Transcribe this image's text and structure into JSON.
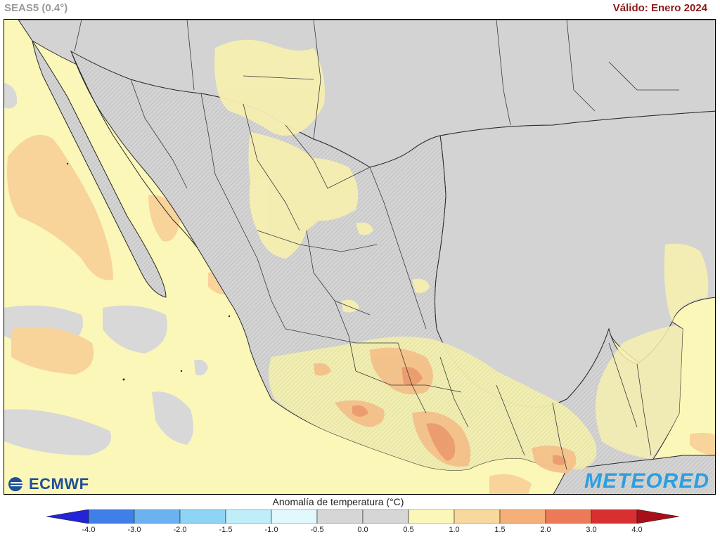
{
  "header": {
    "model": "SEAS5 (0.4°)",
    "valid": "Válido: Enero 2024"
  },
  "map": {
    "region": "Mexico",
    "variable": "temperature anomaly",
    "background_color": "#fbf7b8",
    "land_color": "#d3d3d3"
  },
  "logos": {
    "left": "ECMWF",
    "right": "METEORED"
  },
  "legend": {
    "title": "Anomalía de temperatura (°C)",
    "ticks": [
      "-4.0",
      "-3.0",
      "-2.0",
      "-1.5",
      "-1.0",
      "-0.5",
      "0.0",
      "0.5",
      "1.0",
      "1.5",
      "2.0",
      "3.0",
      "4.0"
    ],
    "colors": [
      "#2323d8",
      "#3f7fe8",
      "#6bb3f0",
      "#8fd3f5",
      "#bfeefa",
      "#e1f8fc",
      "#d6d6d6",
      "#d6d6d6",
      "#fbf7b8",
      "#f8d89c",
      "#f4b078",
      "#ec7a58",
      "#d83030",
      "#a80f18"
    ]
  }
}
